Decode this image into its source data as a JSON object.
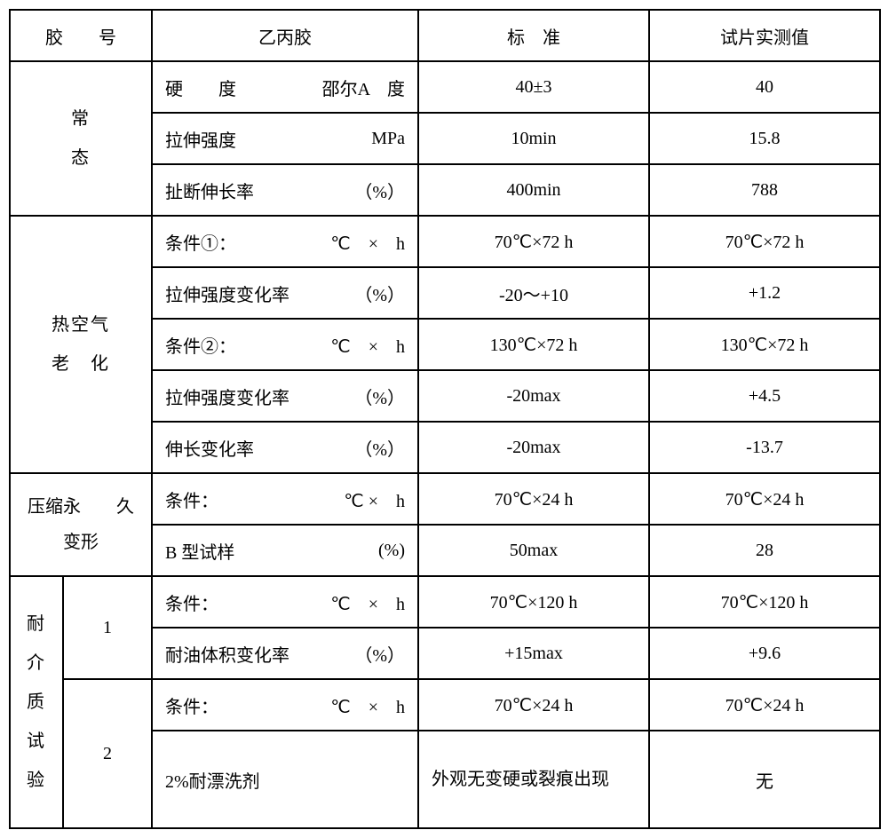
{
  "header": {
    "col1": "胶　　号",
    "col2": "乙丙胶",
    "col3": "标　准",
    "col4": "试片实测值"
  },
  "sections": {
    "normal": {
      "title_line1": "常",
      "title_line2": "态",
      "rows": [
        {
          "param": "硬　　度",
          "unit": "邵尔A　度",
          "std": "40±3",
          "val": "40"
        },
        {
          "param": "拉伸强度",
          "unit": "MPa",
          "std": "10min",
          "val": "15.8"
        },
        {
          "param": "扯断伸长率",
          "unit": "（%）",
          "std": "400min",
          "val": "788"
        }
      ]
    },
    "aging": {
      "title_line1": "热空气",
      "title_line2": "老　化",
      "rows": [
        {
          "param": "条件①：",
          "unit": "℃　×　h",
          "std": "70℃×72 h",
          "val": "70℃×72 h"
        },
        {
          "param": "拉伸强度变化率",
          "unit": "（%）",
          "std": "-20～+10",
          "val": "+1.2"
        },
        {
          "param": "条件②：",
          "unit": "℃　×　h",
          "std": "130℃×72 h",
          "val": "130℃×72 h"
        },
        {
          "param": "拉伸强度变化率",
          "unit": "（%）",
          "std": "-20max",
          "val": "+4.5"
        },
        {
          "param": "伸长变化率",
          "unit": "（%）",
          "std": "-20max",
          "val": "-13.7"
        }
      ]
    },
    "compression": {
      "title_line1": "压缩永　　久",
      "title_line2": "变形",
      "rows": [
        {
          "param": "条件：",
          "unit": "℃ ×　h",
          "std": "70℃×24 h",
          "val": "70℃×24 h"
        },
        {
          "param": "B 型试样",
          "unit": "(%)",
          "std": "50max",
          "val": "28"
        }
      ]
    },
    "media": {
      "title": "耐 介 质 试 验",
      "sub1": "1",
      "sub2": "2",
      "rows1": [
        {
          "param": "条件：",
          "unit": "℃　×　h",
          "std": "70℃×120 h",
          "val": "70℃×120 h"
        },
        {
          "param": "耐油体积变化率",
          "unit": "（%）",
          "std": "+15max",
          "val": "+9.6"
        }
      ],
      "rows2": [
        {
          "param": "条件：",
          "unit": "℃　×　h",
          "std": "70℃×24 h",
          "val": "70℃×24 h"
        },
        {
          "param_full": "2%耐漂洗剂",
          "std": "外观无变硬或裂痕出现",
          "val": "无"
        }
      ]
    }
  }
}
